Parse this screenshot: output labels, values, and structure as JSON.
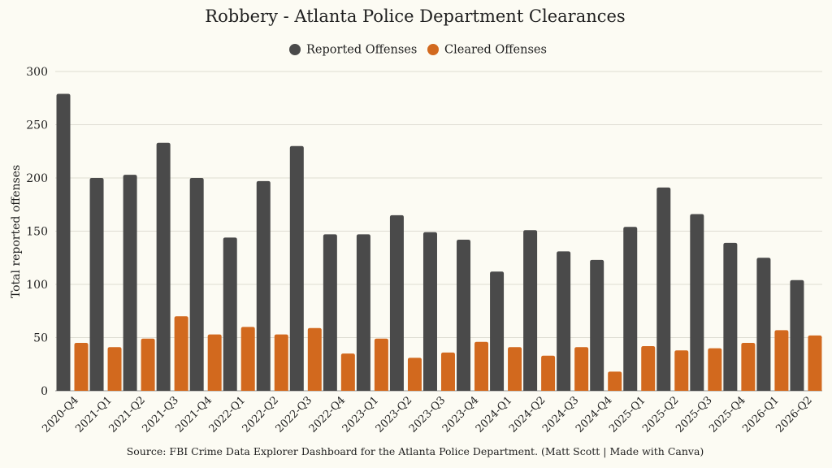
{
  "chart_data": {
    "type": "bar",
    "title": "Robbery - Atlanta Police Department Clearances",
    "ylabel": "Total reported offenses",
    "xlabel": "",
    "ylim": [
      0,
      300
    ],
    "yticks": [
      0,
      50,
      100,
      150,
      200,
      250,
      300
    ],
    "grid": true,
    "legend_position": "top-center",
    "categories": [
      "2020-Q4",
      "2021-Q1",
      "2021-Q2",
      "2021-Q3",
      "2021-Q4",
      "2022-Q1",
      "2022-Q2",
      "2022-Q3",
      "2022-Q4",
      "2023-Q1",
      "2023-Q2",
      "2023-Q3",
      "2023-Q4",
      "2024-Q1",
      "2024-Q2",
      "2024-Q3",
      "2024-Q4",
      "2025-Q1",
      "2025-Q2",
      "2025-Q3",
      "2025-Q4",
      "2026-Q1",
      "2026-Q2"
    ],
    "series": [
      {
        "name": "Reported Offenses",
        "color": "#4a4a4a",
        "values": [
          279,
          200,
          203,
          233,
          200,
          144,
          197,
          230,
          147,
          147,
          165,
          149,
          142,
          112,
          151,
          131,
          123,
          154,
          191,
          166,
          139,
          125,
          104
        ]
      },
      {
        "name": "Cleared Offenses",
        "color": "#d2691e",
        "values": [
          45,
          41,
          49,
          70,
          53,
          60,
          53,
          59,
          35,
          49,
          31,
          36,
          46,
          41,
          33,
          41,
          18,
          42,
          38,
          40,
          45,
          57,
          52
        ]
      }
    ],
    "source": "Source: FBI Crime Data Explorer Dashboard for the Atlanta Police Department. (Matt Scott | Made with Canva)"
  }
}
